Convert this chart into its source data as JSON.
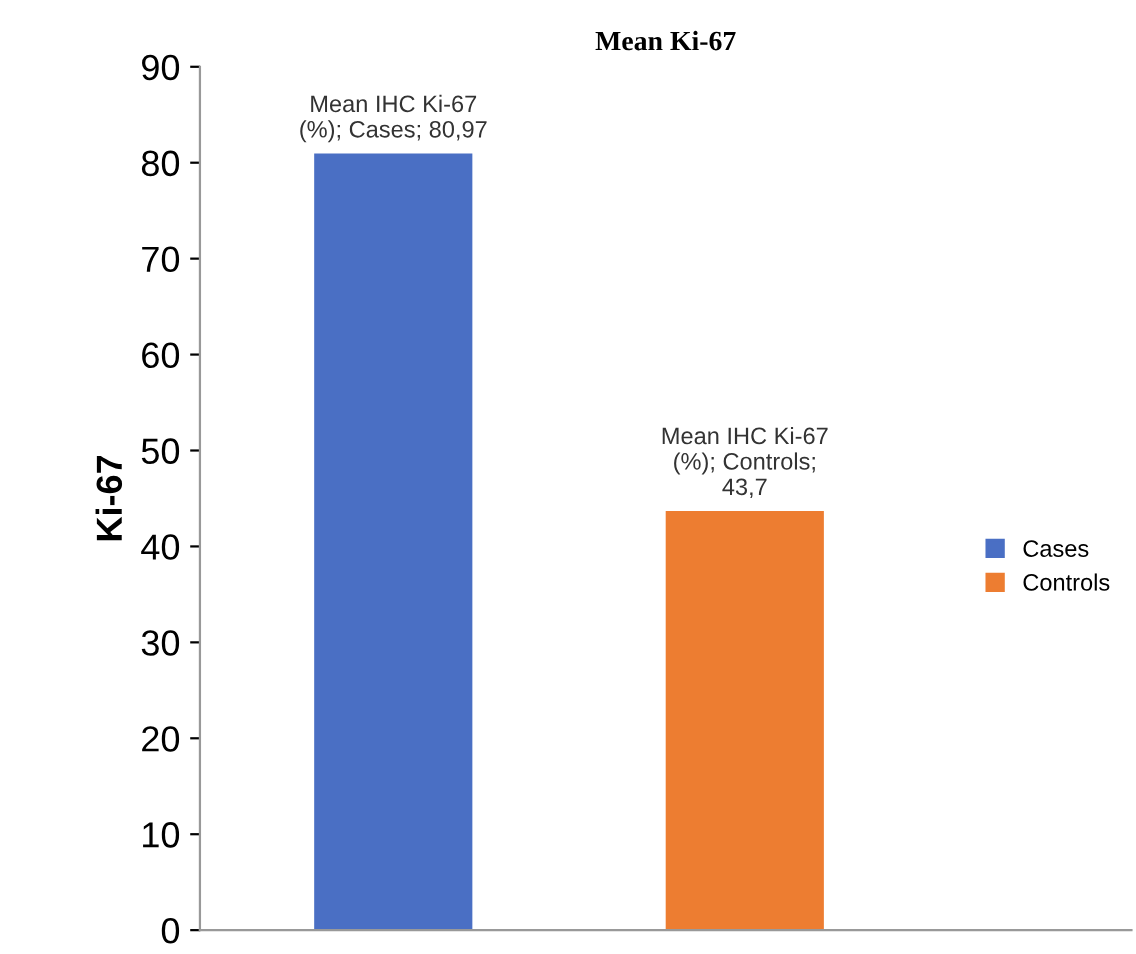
{
  "chart_data": {
    "type": "bar",
    "title": "Mean Ki-67",
    "ylabel": "Ki-67",
    "categories": [
      null,
      null
    ],
    "series": [
      {
        "name": "Cases",
        "color": "#4a6fc4",
        "values": [
          80.97,
          null
        ],
        "value_labels": [
          "Mean IHC Ki-67\n(%); Cases; 80,97",
          null
        ]
      },
      {
        "name": "Controls",
        "color": "#ed7d31",
        "values": [
          null,
          43.7
        ],
        "value_labels": [
          null,
          "Mean IHC Ki-67\n(%); Controls;\n43,7"
        ]
      }
    ],
    "ylim": [
      0,
      90
    ],
    "yticks": [
      0,
      10,
      20,
      30,
      40,
      50,
      60,
      70,
      80,
      90
    ],
    "grid": false,
    "legend": "right"
  }
}
